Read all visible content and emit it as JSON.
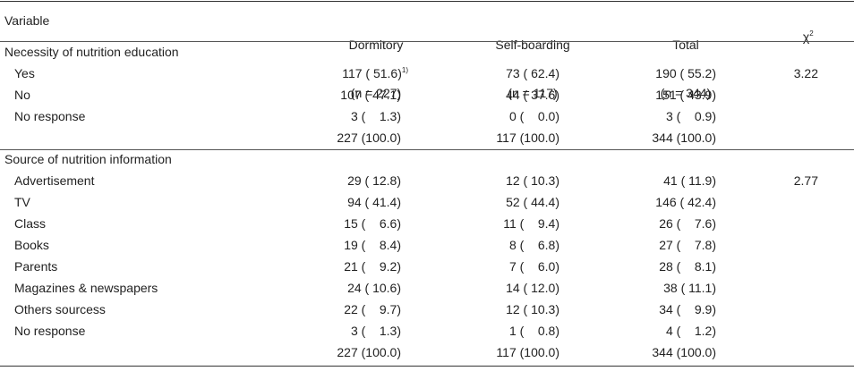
{
  "header": {
    "variable": "Variable",
    "dormitory": "Dormitory",
    "dormitory_n": "(n = 227)",
    "self_boarding": "Self-boarding",
    "self_boarding_n": "(n = 117)",
    "total": "Total",
    "total_n": "(n = 344)",
    "chi_symbol": "χ",
    "chi_sup": "2"
  },
  "sections": [
    {
      "title": "Necessity of nutrition education",
      "rows": [
        {
          "label": "Yes",
          "dormitory": "117 ( 51.6)",
          "footnote": "1)",
          "self_boarding": "73 ( 62.4)",
          "total": "190 ( 55.2)",
          "chi": "3.22"
        },
        {
          "label": "No",
          "dormitory": "107 ( 47.1)",
          "footnote": "",
          "self_boarding": "44 ( 37.6)",
          "total": "151 ( 43.9)",
          "chi": ""
        },
        {
          "label": "No response",
          "dormitory": "3 (    1.3)",
          "footnote": "",
          "self_boarding": "0 (    0.0)",
          "total": "3 (    0.9)",
          "chi": ""
        }
      ],
      "total_row": {
        "dormitory": "227 (100.0)",
        "self_boarding": "117 (100.0)",
        "total": "344 (100.0)"
      }
    },
    {
      "title": "Source of nutrition information",
      "rows": [
        {
          "label": "Advertisement",
          "dormitory": "29 ( 12.8)",
          "footnote": "",
          "self_boarding": "12 ( 10.3)",
          "total": "41 ( 11.9)",
          "chi": "2.77"
        },
        {
          "label": "TV",
          "dormitory": "94 ( 41.4)",
          "footnote": "",
          "self_boarding": "52 ( 44.4)",
          "total": "146 ( 42.4)",
          "chi": ""
        },
        {
          "label": "Class",
          "dormitory": "15 (    6.6)",
          "footnote": "",
          "self_boarding": "11 (    9.4)",
          "total": "26 (    7.6)",
          "chi": ""
        },
        {
          "label": "Books",
          "dormitory": "19 (    8.4)",
          "footnote": "",
          "self_boarding": "8 (    6.8)",
          "total": "27 (    7.8)",
          "chi": ""
        },
        {
          "label": "Parents",
          "dormitory": "21 (    9.2)",
          "footnote": "",
          "self_boarding": "7 (    6.0)",
          "total": "28 (    8.1)",
          "chi": ""
        },
        {
          "label": "Magazines & newspapers",
          "dormitory": "24 ( 10.6)",
          "footnote": "",
          "self_boarding": "14 ( 12.0)",
          "total": "38 ( 11.1)",
          "chi": ""
        },
        {
          "label": "Others sourcess",
          "dormitory": "22 (    9.7)",
          "footnote": "",
          "self_boarding": "12 ( 10.3)",
          "total": "34 (    9.9)",
          "chi": ""
        },
        {
          "label": "No response",
          "dormitory": "3 (    1.3)",
          "footnote": "",
          "self_boarding": "1 (    0.8)",
          "total": "4 (    1.2)",
          "chi": ""
        }
      ],
      "total_row": {
        "dormitory": "227 (100.0)",
        "self_boarding": "117 (100.0)",
        "total": "344 (100.0)"
      }
    }
  ]
}
